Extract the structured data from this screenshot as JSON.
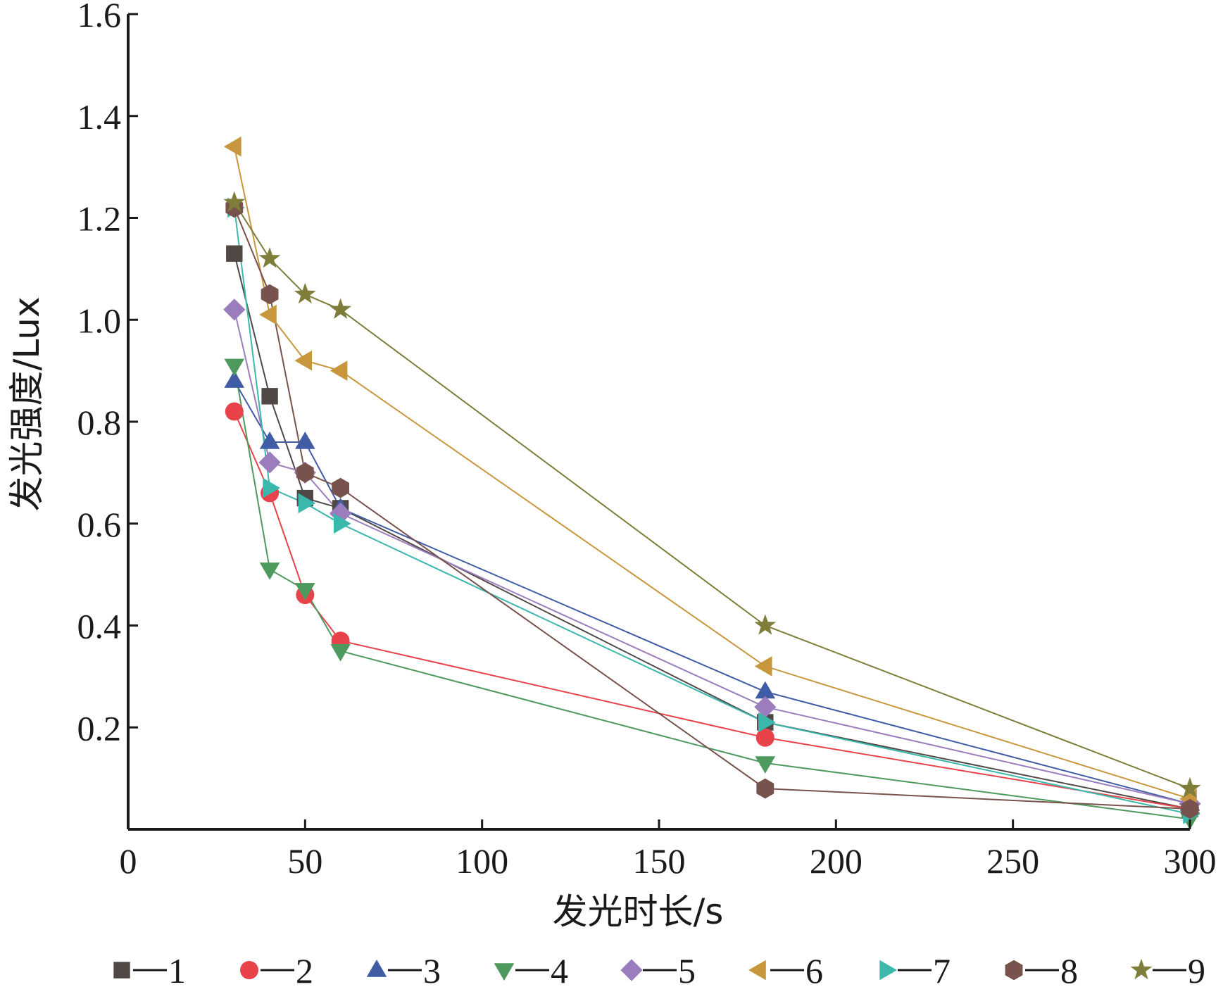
{
  "chart_data": {
    "type": "line",
    "xlabel": "发光时长/s",
    "ylabel": "发光强度/Lux",
    "xlim": [
      0,
      300
    ],
    "ylim": [
      0,
      1.6
    ],
    "xticks": [
      "0",
      "50",
      "100",
      "150",
      "200",
      "250",
      "300"
    ],
    "yticks": [
      "0.2",
      "0.4",
      "0.6",
      "0.8",
      "1.0",
      "1.2",
      "1.4",
      "1.6"
    ],
    "grid": false,
    "legend_position": "bottom",
    "x": [
      30,
      40,
      50,
      60,
      180,
      300
    ],
    "series": [
      {
        "name": "1",
        "marker": "square",
        "color": "#504845",
        "values": [
          1.13,
          0.85,
          0.65,
          0.63,
          0.21,
          0.04
        ]
      },
      {
        "name": "2",
        "marker": "circle",
        "color": "#e8434a",
        "values": [
          0.82,
          0.66,
          0.46,
          0.37,
          0.18,
          0.04
        ]
      },
      {
        "name": "3",
        "marker": "triangle-up",
        "color": "#3f5ca5",
        "values": [
          0.88,
          0.76,
          0.76,
          0.63,
          0.27,
          0.05
        ]
      },
      {
        "name": "4",
        "marker": "triangle-down",
        "color": "#4e9a5e",
        "values": [
          0.91,
          0.51,
          0.47,
          0.35,
          0.13,
          0.02
        ]
      },
      {
        "name": "5",
        "marker": "diamond",
        "color": "#9b7dbd",
        "values": [
          1.02,
          0.72,
          0.7,
          0.62,
          0.24,
          0.05
        ]
      },
      {
        "name": "6",
        "marker": "triangle-left",
        "color": "#c8963c",
        "values": [
          1.34,
          1.01,
          0.92,
          0.9,
          0.32,
          0.06
        ]
      },
      {
        "name": "7",
        "marker": "triangle-right",
        "color": "#3bb8ac",
        "values": [
          1.22,
          0.67,
          0.64,
          0.6,
          0.21,
          0.03
        ]
      },
      {
        "name": "8",
        "marker": "hexagon",
        "color": "#78524d",
        "values": [
          1.22,
          1.05,
          0.7,
          0.67,
          0.08,
          0.04
        ]
      },
      {
        "name": "9",
        "marker": "star",
        "color": "#7e7e3a",
        "values": [
          1.23,
          1.12,
          1.05,
          1.02,
          0.4,
          0.08
        ]
      }
    ]
  }
}
